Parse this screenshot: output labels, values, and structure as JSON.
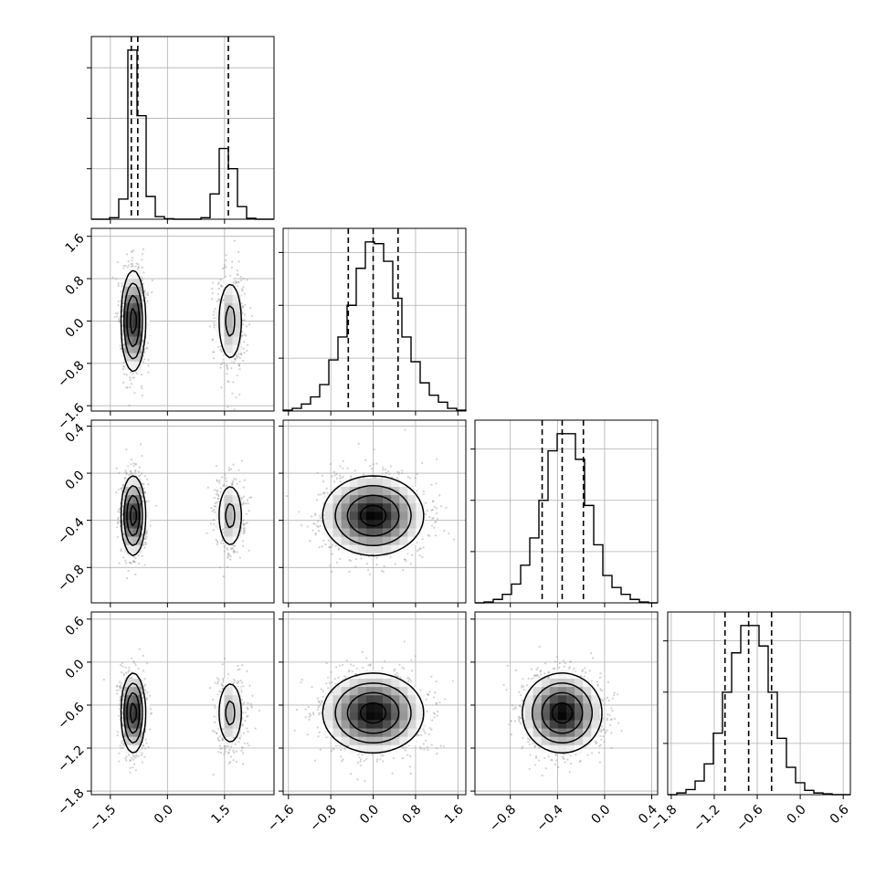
{
  "chart_data": {
    "type": "corner",
    "parameters": 4,
    "hist_count_ticks": {
      "0": [
        1000,
        2000,
        3000
      ],
      "1": [
        300,
        600,
        900
      ],
      "2": [
        300,
        600,
        900
      ],
      "3": [
        300,
        600,
        900
      ]
    },
    "params": [
      {
        "range": [
          -2.0,
          2.8
        ],
        "ticks": [
          -1.5,
          0.0,
          1.5
        ],
        "tick_labels": [
          "−1.5",
          "0.0",
          "1.5"
        ],
        "quantiles": [
          -0.95,
          -0.78,
          1.6
        ]
      },
      {
        "range": [
          -1.7,
          1.75
        ],
        "ticks": [
          -1.6,
          -0.8,
          0.0,
          0.8,
          1.6
        ],
        "tick_labels": [
          "−1.6",
          "−0.8",
          "0.0",
          "0.8",
          "1.6"
        ],
        "quantiles": [
          -0.47,
          0.0,
          0.47
        ]
      },
      {
        "range": [
          -1.1,
          0.45
        ],
        "ticks": [
          -0.8,
          -0.4,
          0.0,
          0.4
        ],
        "tick_labels": [
          "−0.8",
          "−0.4",
          "0.0",
          "0.4"
        ],
        "quantiles": [
          -0.53,
          -0.36,
          -0.18
        ]
      },
      {
        "range": [
          -1.85,
          0.7
        ],
        "ticks": [
          -1.8,
          -1.2,
          -0.6,
          0.0,
          0.6
        ],
        "tick_labels": [
          "−1.8",
          "−1.2",
          "−0.6",
          "0.0",
          "0.6"
        ],
        "quantiles": [
          -1.05,
          -0.72,
          -0.4
        ]
      }
    ],
    "histograms": [
      {
        "edges": [
          -2.0,
          -1.76,
          -1.52,
          -1.28,
          -1.04,
          -0.8,
          -0.56,
          -0.32,
          -0.08,
          0.16,
          0.4,
          0.64,
          0.88,
          1.12,
          1.36,
          1.6,
          1.84,
          2.08,
          2.32,
          2.56,
          2.8
        ],
        "counts": [
          0,
          0,
          30,
          400,
          3350,
          2050,
          450,
          50,
          10,
          0,
          0,
          0,
          30,
          500,
          1400,
          1000,
          250,
          20,
          0,
          0
        ]
      },
      {
        "edges": [
          -1.7,
          -1.5275,
          -1.355,
          -1.1825,
          -1.01,
          -0.8375,
          -0.665,
          -0.4925,
          -0.32,
          -0.1475,
          0.025,
          0.1975,
          0.37,
          0.5425,
          0.715,
          0.8875,
          1.06,
          1.2325,
          1.405,
          1.5775,
          1.75
        ],
        "counts": [
          5,
          15,
          40,
          80,
          150,
          290,
          420,
          600,
          810,
          960,
          950,
          850,
          640,
          420,
          280,
          160,
          90,
          50,
          15,
          5
        ]
      },
      {
        "edges": [
          -1.1,
          -1.0225,
          -0.945,
          -0.8675,
          -0.79,
          -0.7125,
          -0.635,
          -0.5575,
          -0.48,
          -0.4025,
          -0.325,
          -0.2475,
          -0.17,
          -0.0925,
          -0.015,
          0.0625,
          0.14,
          0.2175,
          0.295,
          0.3725,
          0.45
        ],
        "counts": [
          0,
          5,
          20,
          50,
          110,
          220,
          380,
          600,
          890,
          990,
          990,
          840,
          570,
          340,
          160,
          90,
          50,
          20,
          5,
          0
        ]
      },
      {
        "edges": [
          -1.85,
          -1.7225,
          -1.595,
          -1.4675,
          -1.34,
          -1.2125,
          -1.085,
          -0.9575,
          -0.83,
          -0.7025,
          -0.575,
          -0.4475,
          -0.32,
          -0.1925,
          -0.065,
          0.0625,
          0.19,
          0.3175,
          0.445,
          0.5725,
          0.7
        ],
        "counts": [
          0,
          10,
          30,
          80,
          180,
          360,
          600,
          830,
          990,
          990,
          870,
          600,
          330,
          160,
          70,
          25,
          10,
          5,
          0,
          0
        ]
      }
    ],
    "modes": [
      [
        {
          "mean": -0.9,
          "sd": 0.16,
          "weight": 0.67
        },
        {
          "mean": 1.65,
          "sd": 0.2,
          "weight": 0.33
        }
      ],
      [
        {
          "mean": 0.0,
          "sd": 0.48,
          "weight": 1.0
        }
      ],
      [
        {
          "mean": -0.36,
          "sd": 0.17,
          "weight": 1.0
        }
      ],
      [
        {
          "mean": -0.71,
          "sd": 0.28,
          "weight": 1.0
        }
      ]
    ]
  }
}
